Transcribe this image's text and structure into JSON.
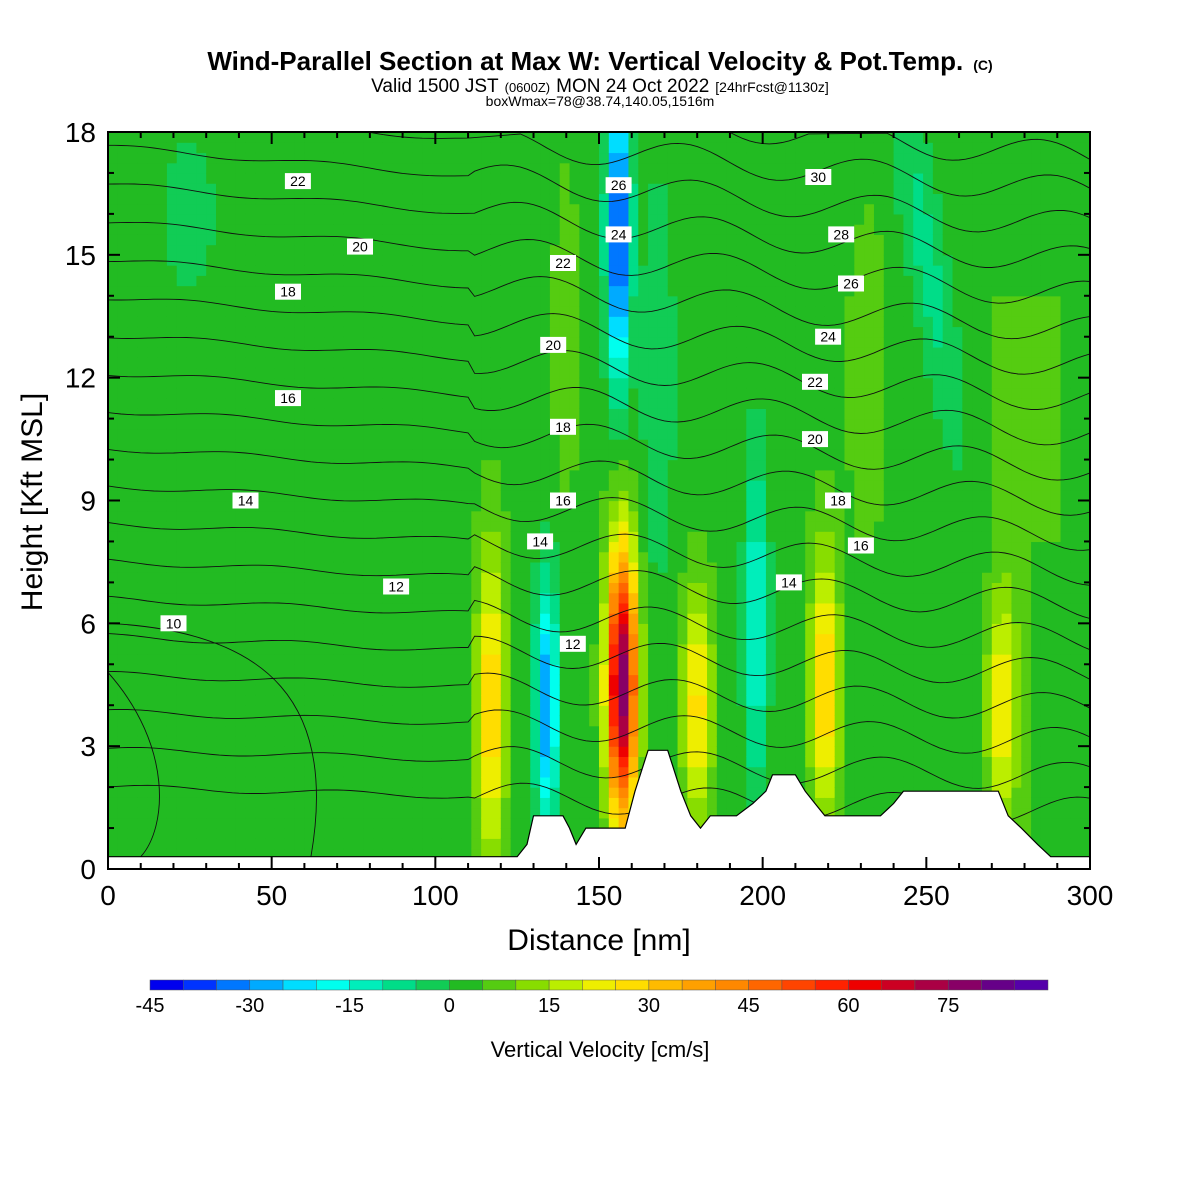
{
  "title": {
    "line1": "Wind-Parallel Section at Max W: Vertical Velocity & Pot.Temp.",
    "line1_tag": "(C)",
    "line2_a": "Valid 1500 JST",
    "line2_b": "(0600Z)",
    "line2_c": "MON 24 Oct 2022",
    "line2_d": "[24hrFcst@1130z]",
    "line3": "boxWmax=78@38.74,140.05,1516m"
  },
  "chart_data": {
    "type": "heatmap",
    "xlabel": "Distance [nm]",
    "ylabel": "Height [Kft MSL]",
    "xlim": [
      0,
      300
    ],
    "ylim": [
      0,
      18
    ],
    "x_ticks": [
      "0",
      "50",
      "100",
      "150",
      "200",
      "250",
      "300"
    ],
    "y_ticks": [
      "0",
      "3",
      "6",
      "9",
      "12",
      "15",
      "18"
    ],
    "colorbar": {
      "title": "Vertical Velocity [cm/s]",
      "ticks": [
        "-45",
        "-30",
        "-15",
        "0",
        "15",
        "30",
        "45",
        "60",
        "75"
      ],
      "levels": [
        -45,
        -40,
        -35,
        -30,
        -25,
        -20,
        -15,
        -10,
        -5,
        0,
        5,
        10,
        15,
        20,
        25,
        30,
        35,
        40,
        45,
        50,
        55,
        60,
        65,
        70,
        75,
        80,
        85,
        90
      ],
      "colors": [
        "#0000ee",
        "#0033ff",
        "#0077ff",
        "#00aaff",
        "#00ddff",
        "#00ffee",
        "#00eebb",
        "#00dd88",
        "#11cc55",
        "#22bb22",
        "#55cc11",
        "#88dd00",
        "#bbee00",
        "#eeee00",
        "#ffdd00",
        "#ffbb00",
        "#ffa000",
        "#ff8800",
        "#ff6600",
        "#ff4400",
        "#ff2200",
        "#ee0000",
        "#cc0022",
        "#aa0044",
        "#880066",
        "#660088",
        "#5500aa"
      ]
    },
    "updraft_bands": [
      {
        "x": 117,
        "peak": 28,
        "z_low": 1,
        "z_high": 7
      },
      {
        "x": 157,
        "peak": 78,
        "z_low": 2,
        "z_high": 7
      },
      {
        "x": 180,
        "peak": 25,
        "z_low": 2,
        "z_high": 6
      },
      {
        "x": 219,
        "peak": 28,
        "z_low": 2,
        "z_high": 7
      },
      {
        "x": 273,
        "peak": 22,
        "z_low": 2,
        "z_high": 6
      }
    ],
    "downdraft_bands": [
      {
        "x": 134,
        "peak": -33,
        "z_low": 2,
        "z_high": 6
      },
      {
        "x": 156,
        "peak": -45,
        "z_low": 13,
        "z_high": 18
      },
      {
        "x": 198,
        "peak": -20,
        "z_low": 3,
        "z_high": 9
      }
    ],
    "terrain": [
      {
        "x": 0,
        "z": 0.3
      },
      {
        "x": 125,
        "z": 0.3
      },
      {
        "x": 128,
        "z": 0.6
      },
      {
        "x": 130,
        "z": 1.3
      },
      {
        "x": 139,
        "z": 1.3
      },
      {
        "x": 141,
        "z": 1.0
      },
      {
        "x": 143,
        "z": 0.6
      },
      {
        "x": 146,
        "z": 1.0
      },
      {
        "x": 155,
        "z": 1.0
      },
      {
        "x": 158,
        "z": 1.0
      },
      {
        "x": 161,
        "z": 1.9
      },
      {
        "x": 165,
        "z": 2.9
      },
      {
        "x": 171,
        "z": 2.9
      },
      {
        "x": 175,
        "z": 1.9
      },
      {
        "x": 178,
        "z": 1.3
      },
      {
        "x": 181,
        "z": 1.0
      },
      {
        "x": 184,
        "z": 1.3
      },
      {
        "x": 192,
        "z": 1.3
      },
      {
        "x": 197,
        "z": 1.6
      },
      {
        "x": 201,
        "z": 1.9
      },
      {
        "x": 203,
        "z": 2.3
      },
      {
        "x": 210,
        "z": 2.3
      },
      {
        "x": 213,
        "z": 1.9
      },
      {
        "x": 216,
        "z": 1.6
      },
      {
        "x": 219,
        "z": 1.3
      },
      {
        "x": 236,
        "z": 1.3
      },
      {
        "x": 240,
        "z": 1.6
      },
      {
        "x": 243,
        "z": 1.9
      },
      {
        "x": 272,
        "z": 1.9
      },
      {
        "x": 275,
        "z": 1.3
      },
      {
        "x": 279,
        "z": 1.0
      },
      {
        "x": 284,
        "z": 0.6
      },
      {
        "x": 288,
        "z": 0.3
      },
      {
        "x": 300,
        "z": 0.3
      }
    ],
    "isentrope_labels": [
      {
        "value": "10",
        "x": 20,
        "z": 6.0
      },
      {
        "value": "12",
        "x": 88,
        "z": 6.9
      },
      {
        "value": "12",
        "x": 142,
        "z": 5.5
      },
      {
        "value": "14",
        "x": 42,
        "z": 9.0
      },
      {
        "value": "14",
        "x": 132,
        "z": 8.0
      },
      {
        "value": "14",
        "x": 208,
        "z": 7.0
      },
      {
        "value": "16",
        "x": 55,
        "z": 11.5
      },
      {
        "value": "16",
        "x": 139,
        "z": 9.0
      },
      {
        "value": "16",
        "x": 230,
        "z": 7.9
      },
      {
        "value": "18",
        "x": 55,
        "z": 14.1
      },
      {
        "value": "18",
        "x": 139,
        "z": 10.8
      },
      {
        "value": "18",
        "x": 223,
        "z": 9.0
      },
      {
        "value": "20",
        "x": 77,
        "z": 15.2
      },
      {
        "value": "20",
        "x": 136,
        "z": 12.8
      },
      {
        "value": "20",
        "x": 216,
        "z": 10.5
      },
      {
        "value": "22",
        "x": 58,
        "z": 16.8
      },
      {
        "value": "22",
        "x": 139,
        "z": 14.8
      },
      {
        "value": "22",
        "x": 216,
        "z": 11.9
      },
      {
        "value": "24",
        "x": 156,
        "z": 15.5
      },
      {
        "value": "24",
        "x": 220,
        "z": 13.0
      },
      {
        "value": "26",
        "x": 156,
        "z": 16.7
      },
      {
        "value": "26",
        "x": 227,
        "z": 14.3
      },
      {
        "value": "28",
        "x": 224,
        "z": 15.5
      },
      {
        "value": "30",
        "x": 217,
        "z": 16.9
      }
    ]
  }
}
